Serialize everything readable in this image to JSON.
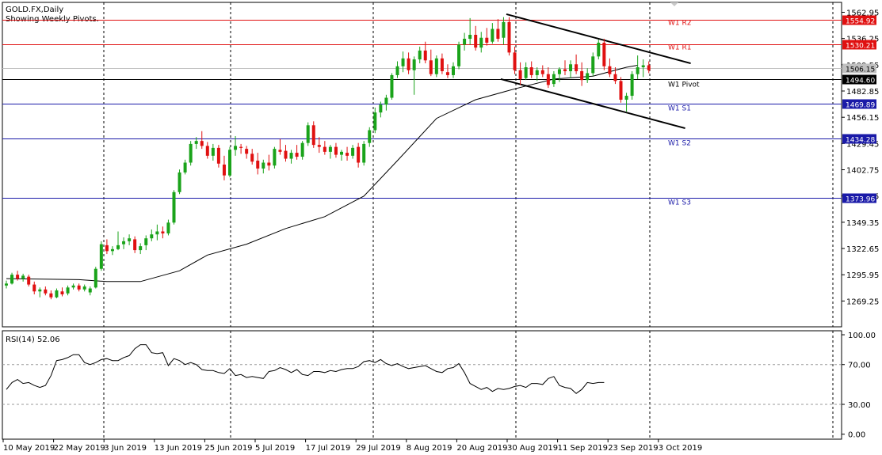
{
  "header": {
    "symbol": "GOLD.FX,Daily",
    "subtitle": "Showing Weekly Pivots."
  },
  "colors": {
    "bull": "#1aa31a",
    "bear": "#e01010",
    "resistance": "#e01010",
    "support": "#1a1aa8",
    "pivot": "#000000",
    "ma": "#000000",
    "grid": "#000000"
  },
  "chart_data": [
    {
      "type": "candlestick",
      "title": "",
      "yaxis_ticks": [
        "1562.95",
        "1536.25",
        "1509.55",
        "1482.85",
        "1456.15",
        "1429.45",
        "1402.75",
        "1376.05",
        "1349.35",
        "1322.65",
        "1295.95",
        "1269.25"
      ],
      "xaxis_ticks": [
        "10 May 2019",
        "22 May 2019",
        "3 Jun 2019",
        "13 Jun 2019",
        "25 Jun 2019",
        "5 Jul 2019",
        "17 Jul 2019",
        "29 Jul 2019",
        "8 Aug 2019",
        "20 Aug 2019",
        "30 Aug 2019",
        "11 Sep 2019",
        "23 Sep 2019",
        "3 Oct 2019"
      ],
      "ylim": [
        1243,
        1573
      ],
      "levels": [
        {
          "name": "W1 R2",
          "value": 1554.92,
          "label": "1554.92",
          "kind": "resistance"
        },
        {
          "name": "W1 R1",
          "value": 1530.21,
          "label": "1530.21",
          "kind": "resistance"
        },
        {
          "name": "",
          "value": 1506.15,
          "label": "1506.15",
          "kind": "current"
        },
        {
          "name": "W1 Pivot",
          "value": 1494.6,
          "label": "1494.60",
          "kind": "pivot"
        },
        {
          "name": "W1 S1",
          "value": 1469.89,
          "label": "1469.89",
          "kind": "support"
        },
        {
          "name": "W1 S2",
          "value": 1434.28,
          "label": "1434.28",
          "kind": "support"
        },
        {
          "name": "W1 S3",
          "value": 1373.96,
          "label": "1373.96",
          "kind": "support"
        }
      ],
      "candles": [
        [
          1285,
          1290,
          1282,
          1287
        ],
        [
          1287,
          1298,
          1286,
          1296
        ],
        [
          1296,
          1300,
          1290,
          1292
        ],
        [
          1292,
          1297,
          1289,
          1295
        ],
        [
          1294,
          1296,
          1284,
          1286
        ],
        [
          1286,
          1289,
          1276,
          1279
        ],
        [
          1279,
          1283,
          1273,
          1281
        ],
        [
          1281,
          1284,
          1275,
          1277
        ],
        [
          1277,
          1280,
          1271,
          1273
        ],
        [
          1273,
          1282,
          1272,
          1280
        ],
        [
          1279,
          1283,
          1274,
          1276
        ],
        [
          1277,
          1285,
          1275,
          1283
        ],
        [
          1283,
          1287,
          1281,
          1285
        ],
        [
          1285,
          1287,
          1279,
          1281
        ],
        [
          1281,
          1286,
          1279,
          1284
        ],
        [
          1278,
          1284,
          1275,
          1282
        ],
        [
          1283,
          1304,
          1282,
          1302
        ],
        [
          1302,
          1330,
          1300,
          1327
        ],
        [
          1326,
          1332,
          1317,
          1320
        ],
        [
          1320,
          1325,
          1316,
          1322
        ],
        [
          1322,
          1340,
          1321,
          1326
        ],
        [
          1327,
          1334,
          1322,
          1330
        ],
        [
          1330,
          1337,
          1326,
          1333
        ],
        [
          1332,
          1335,
          1318,
          1321
        ],
        [
          1321,
          1328,
          1317,
          1325
        ],
        [
          1326,
          1336,
          1321,
          1333
        ],
        [
          1333,
          1342,
          1330,
          1337
        ],
        [
          1337,
          1347,
          1331,
          1340
        ],
        [
          1340,
          1345,
          1333,
          1338
        ],
        [
          1338,
          1352,
          1336,
          1349
        ],
        [
          1349,
          1382,
          1347,
          1380
        ],
        [
          1380,
          1403,
          1378,
          1400
        ],
        [
          1400,
          1413,
          1398,
          1410
        ],
        [
          1410,
          1432,
          1407,
          1429
        ],
        [
          1429,
          1436,
          1424,
          1432
        ],
        [
          1432,
          1442,
          1424,
          1427
        ],
        [
          1427,
          1431,
          1414,
          1417
        ],
        [
          1417,
          1429,
          1412,
          1425
        ],
        [
          1425,
          1428,
          1405,
          1409
        ],
        [
          1408,
          1417,
          1392,
          1397
        ],
        [
          1397,
          1426,
          1395,
          1423
        ],
        [
          1423,
          1437,
          1417,
          1427
        ],
        [
          1426,
          1429,
          1419,
          1425
        ],
        [
          1424,
          1427,
          1414,
          1419
        ],
        [
          1419,
          1424,
          1408,
          1411
        ],
        [
          1412,
          1420,
          1398,
          1404
        ],
        [
          1404,
          1413,
          1399,
          1410
        ],
        [
          1410,
          1418,
          1402,
          1407
        ],
        [
          1407,
          1426,
          1404,
          1424
        ],
        [
          1423,
          1434,
          1418,
          1421
        ],
        [
          1422,
          1428,
          1411,
          1414
        ],
        [
          1414,
          1423,
          1409,
          1420
        ],
        [
          1420,
          1428,
          1413,
          1416
        ],
        [
          1416,
          1432,
          1413,
          1430
        ],
        [
          1430,
          1451,
          1427,
          1448
        ],
        [
          1448,
          1452,
          1425,
          1428
        ],
        [
          1428,
          1436,
          1420,
          1426
        ],
        [
          1426,
          1432,
          1418,
          1421
        ],
        [
          1421,
          1428,
          1414,
          1426
        ],
        [
          1426,
          1430,
          1415,
          1418
        ],
        [
          1418,
          1423,
          1412,
          1421
        ],
        [
          1420,
          1426,
          1412,
          1417
        ],
        [
          1417,
          1428,
          1414,
          1425
        ],
        [
          1426,
          1430,
          1405,
          1410
        ],
        [
          1410,
          1432,
          1407,
          1429
        ],
        [
          1430,
          1446,
          1426,
          1443
        ],
        [
          1443,
          1466,
          1440,
          1461
        ],
        [
          1461,
          1472,
          1456,
          1469
        ],
        [
          1469,
          1479,
          1463,
          1476
        ],
        [
          1476,
          1501,
          1474,
          1499
        ],
        [
          1499,
          1513,
          1496,
          1508
        ],
        [
          1508,
          1523,
          1502,
          1516
        ],
        [
          1516,
          1522,
          1500,
          1504
        ],
        [
          1504,
          1518,
          1479,
          1515
        ],
        [
          1515,
          1528,
          1511,
          1524
        ],
        [
          1524,
          1533,
          1511,
          1514
        ],
        [
          1514,
          1525,
          1498,
          1500
        ],
        [
          1500,
          1519,
          1497,
          1516
        ],
        [
          1516,
          1521,
          1500,
          1503
        ],
        [
          1502,
          1510,
          1496,
          1499
        ],
        [
          1499,
          1512,
          1496,
          1508
        ],
        [
          1508,
          1533,
          1505,
          1530
        ],
        [
          1530,
          1542,
          1524,
          1536
        ],
        [
          1536,
          1557,
          1530,
          1540
        ],
        [
          1540,
          1549,
          1524,
          1527
        ],
        [
          1527,
          1543,
          1522,
          1537
        ],
        [
          1537,
          1547,
          1529,
          1532
        ],
        [
          1533,
          1552,
          1531,
          1546
        ],
        [
          1546,
          1556,
          1533,
          1536
        ],
        [
          1537,
          1558,
          1530,
          1553
        ],
        [
          1553,
          1558,
          1519,
          1522
        ],
        [
          1522,
          1528,
          1500,
          1504
        ],
        [
          1504,
          1512,
          1489,
          1495
        ],
        [
          1496,
          1512,
          1494,
          1507
        ],
        [
          1507,
          1513,
          1496,
          1499
        ],
        [
          1499,
          1507,
          1493,
          1504
        ],
        [
          1504,
          1509,
          1497,
          1500
        ],
        [
          1500,
          1507,
          1486,
          1489
        ],
        [
          1490,
          1503,
          1487,
          1500
        ],
        [
          1500,
          1507,
          1492,
          1505
        ],
        [
          1505,
          1514,
          1499,
          1503
        ],
        [
          1503,
          1514,
          1496,
          1510
        ],
        [
          1510,
          1520,
          1500,
          1503
        ],
        [
          1503,
          1512,
          1488,
          1494
        ],
        [
          1494,
          1506,
          1491,
          1501
        ],
        [
          1501,
          1522,
          1498,
          1518
        ],
        [
          1518,
          1535,
          1515,
          1532
        ],
        [
          1532,
          1536,
          1504,
          1508
        ],
        [
          1508,
          1516,
          1497,
          1500
        ],
        [
          1500,
          1507,
          1490,
          1493
        ],
        [
          1493,
          1497,
          1471,
          1474
        ],
        [
          1474,
          1481,
          1462,
          1478
        ],
        [
          1478,
          1503,
          1474,
          1500
        ],
        [
          1500,
          1519,
          1495,
          1507
        ],
        [
          1507,
          1515,
          1497,
          1509
        ],
        [
          1509,
          1513,
          1501,
          1504
        ]
      ],
      "ma_50": [
        [
          0,
          1292
        ],
        [
          13,
          1291
        ],
        [
          18,
          1289
        ],
        [
          24,
          1289
        ],
        [
          31,
          1300
        ],
        [
          36,
          1316
        ],
        [
          43,
          1327
        ],
        [
          50,
          1343
        ],
        [
          57,
          1355
        ],
        [
          64,
          1376
        ],
        [
          70,
          1412
        ],
        [
          77,
          1455
        ],
        [
          84,
          1474
        ],
        [
          91,
          1485
        ],
        [
          98,
          1495
        ],
        [
          105,
          1498
        ],
        [
          111,
          1507
        ],
        [
          113,
          1509
        ]
      ],
      "channel": [
        {
          "x1": 89.5,
          "y1": 1561,
          "x2": 122.5,
          "y2": 1511
        },
        {
          "x1": 88.5,
          "y1": 1495,
          "x2": 121.5,
          "y2": 1445
        }
      ]
    },
    {
      "type": "line",
      "title": "RSI(14) 52.06",
      "ylim": [
        -5,
        104
      ],
      "yaxis_ticks": [
        "100.00",
        "70.00",
        "30.00",
        "0.00"
      ],
      "levels": [
        70,
        30
      ],
      "values": [
        55,
        61,
        58,
        53,
        48,
        45,
        44,
        45,
        52,
        55,
        51,
        52,
        49,
        47,
        49,
        59,
        74,
        75,
        77,
        80,
        80,
        72,
        70,
        72,
        75,
        76,
        74,
        74,
        77,
        79,
        86,
        90,
        90,
        82,
        81,
        82,
        69,
        76,
        74,
        70,
        72,
        70,
        65,
        64,
        64,
        62,
        61,
        66,
        59,
        60,
        57,
        58,
        57,
        56,
        63,
        64,
        67,
        65,
        62,
        65,
        60,
        59,
        63,
        63,
        62,
        64,
        63,
        65,
        66,
        66,
        68,
        73,
        74,
        72,
        75,
        71,
        69,
        71,
        68,
        66,
        67,
        68,
        69,
        66,
        63,
        62,
        66,
        67,
        71,
        62,
        51,
        48,
        45,
        47,
        43,
        46,
        45,
        46,
        48,
        49,
        47,
        51,
        51,
        50,
        56,
        58,
        49,
        47,
        46,
        41,
        45,
        52,
        51,
        52,
        52
      ],
      "x_offset": -7
    }
  ]
}
